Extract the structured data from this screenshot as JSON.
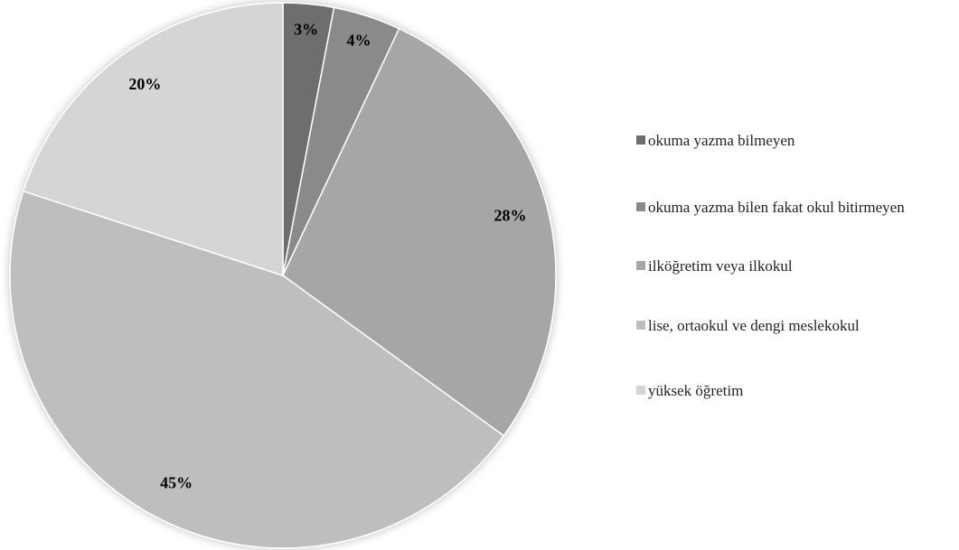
{
  "chart_data": {
    "type": "pie",
    "categories": [
      "okuma yazma bilmeyen",
      "okuma yazma bilen fakat okul bitirmeyen",
      "ilköğretim veya ilkokul",
      "lise, ortaokul ve dengi meslekokul",
      "yüksek öğretim"
    ],
    "values": [
      3,
      4,
      28,
      45,
      20
    ],
    "value_labels": [
      "3%",
      "4%",
      "28%",
      "45%",
      "20%"
    ],
    "colors": [
      "#6e6e6e",
      "#8a8a8a",
      "#a6a6a6",
      "#bebebe",
      "#d5d5d5"
    ],
    "legend": "right"
  }
}
